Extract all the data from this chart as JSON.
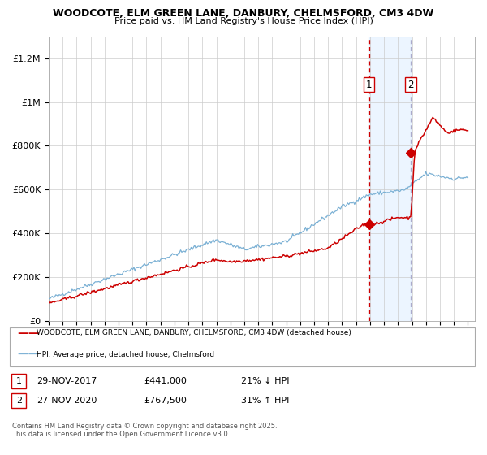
{
  "title1": "WOODCOTE, ELM GREEN LANE, DANBURY, CHELMSFORD, CM3 4DW",
  "title2": "Price paid vs. HM Land Registry's House Price Index (HPI)",
  "ylim": [
    0,
    1300000
  ],
  "yticks": [
    0,
    200000,
    400000,
    600000,
    800000,
    1000000,
    1200000
  ],
  "ytick_labels": [
    "£0",
    "£200K",
    "£400K",
    "£600K",
    "£800K",
    "£1M",
    "£1.2M"
  ],
  "sale1_date": "29-NOV-2017",
  "sale1_price": 441000,
  "sale1_pct": "21%",
  "sale1_dir": "↓",
  "sale2_date": "27-NOV-2020",
  "sale2_price": 767500,
  "sale2_pct": "31%",
  "sale2_dir": "↑",
  "line1_color": "#cc0000",
  "line2_color": "#7ab0d4",
  "marker_color": "#cc0000",
  "vline1_color": "#cc0000",
  "vline2_color": "#aaaacc",
  "shade_color": "#ddeeff",
  "grid_color": "#cccccc",
  "bg_color": "#ffffff",
  "footnote": "Contains HM Land Registry data © Crown copyright and database right 2025.\nThis data is licensed under the Open Government Licence v3.0.",
  "start_year": 1995,
  "end_year": 2025,
  "sale1_year": 2017.92,
  "sale2_year": 2020.92
}
